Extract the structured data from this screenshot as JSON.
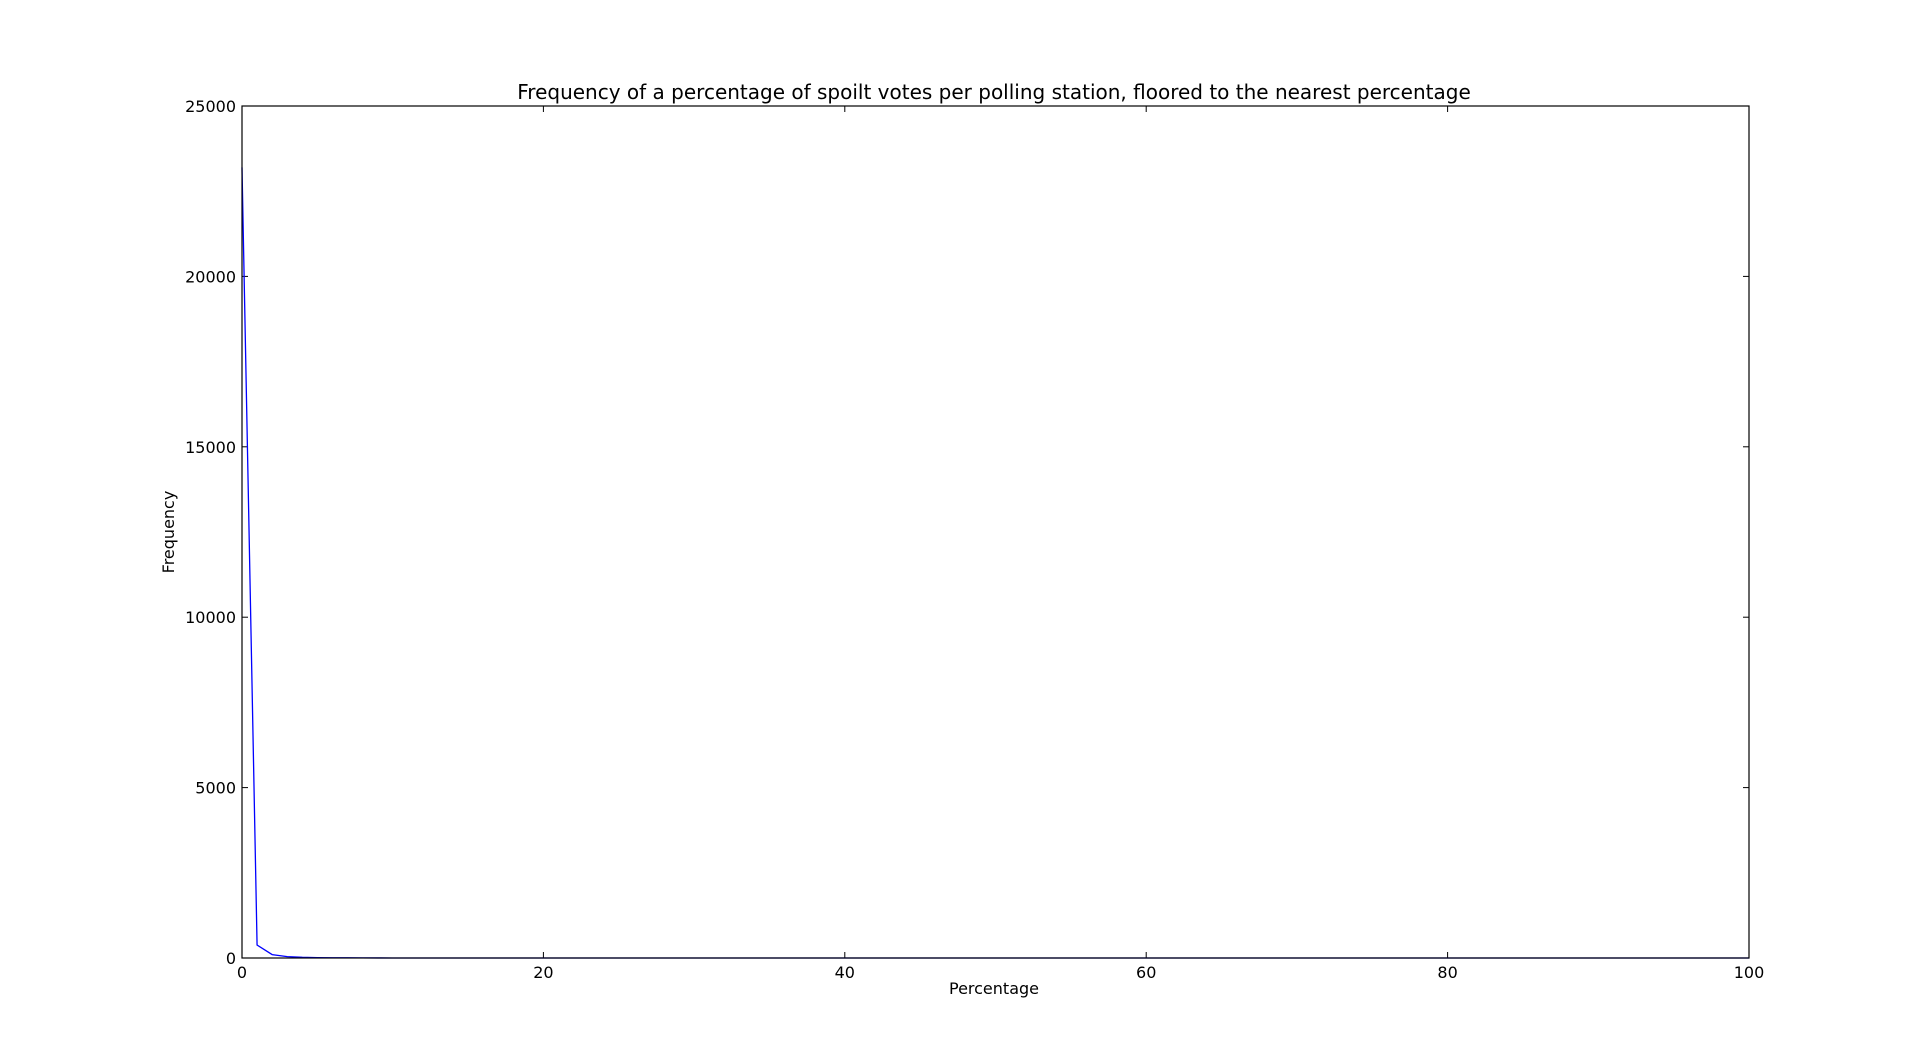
{
  "chart_data": {
    "type": "line",
    "title": "Frequency of a percentage of spoilt votes per polling station, floored to the nearest percentage",
    "xlabel": "Percentage",
    "ylabel": "Frequency",
    "xlim": [
      0,
      100
    ],
    "ylim": [
      0,
      25000
    ],
    "xticks": [
      0,
      20,
      40,
      60,
      80,
      100
    ],
    "yticks": [
      0,
      5000,
      10000,
      15000,
      20000,
      25000
    ],
    "xtick_labels": [
      "0",
      "20",
      "40",
      "60",
      "80",
      "100"
    ],
    "ytick_labels": [
      "0",
      "5000",
      "10000",
      "15000",
      "20000",
      "25000"
    ],
    "grid": false,
    "series": [
      {
        "color": "#0000ff",
        "x": [
          0,
          1,
          2,
          3,
          4,
          5,
          6,
          7,
          8,
          9,
          10,
          11,
          12,
          13,
          14,
          15,
          16,
          17,
          18,
          19,
          20,
          21,
          22,
          23,
          24,
          25,
          26,
          27,
          28,
          29,
          30,
          31,
          32,
          33,
          34,
          35,
          36,
          37,
          38,
          39,
          40,
          41,
          42,
          43,
          44,
          45,
          46,
          47,
          48,
          49,
          50,
          51,
          52,
          53,
          54,
          55,
          56,
          57,
          58,
          59,
          60,
          61,
          62,
          63,
          64,
          65,
          66,
          67,
          68,
          69,
          70,
          71,
          72,
          73,
          74,
          75,
          76,
          77,
          78,
          79,
          80,
          81,
          82,
          83,
          84,
          85,
          86,
          87,
          88,
          89,
          90,
          91,
          92,
          93,
          94,
          95,
          96,
          97,
          98,
          99,
          100
        ],
        "values": [
          23200,
          380,
          100,
          40,
          20,
          12,
          8,
          5,
          3,
          2,
          1,
          1,
          0,
          0,
          0,
          0,
          0,
          0,
          0,
          0,
          0,
          0,
          0,
          0,
          0,
          0,
          0,
          0,
          0,
          0,
          0,
          0,
          0,
          0,
          0,
          0,
          0,
          0,
          0,
          0,
          0,
          0,
          0,
          0,
          0,
          0,
          0,
          0,
          0,
          0,
          0,
          0,
          0,
          0,
          0,
          0,
          0,
          0,
          0,
          0,
          0,
          0,
          0,
          0,
          0,
          0,
          0,
          0,
          0,
          0,
          0,
          0,
          0,
          0,
          0,
          0,
          0,
          0,
          0,
          0,
          0,
          0,
          0,
          0,
          0,
          0,
          0,
          0,
          0,
          0,
          0,
          0,
          0,
          0,
          0,
          0,
          0,
          0,
          0,
          0,
          0
        ]
      }
    ]
  }
}
